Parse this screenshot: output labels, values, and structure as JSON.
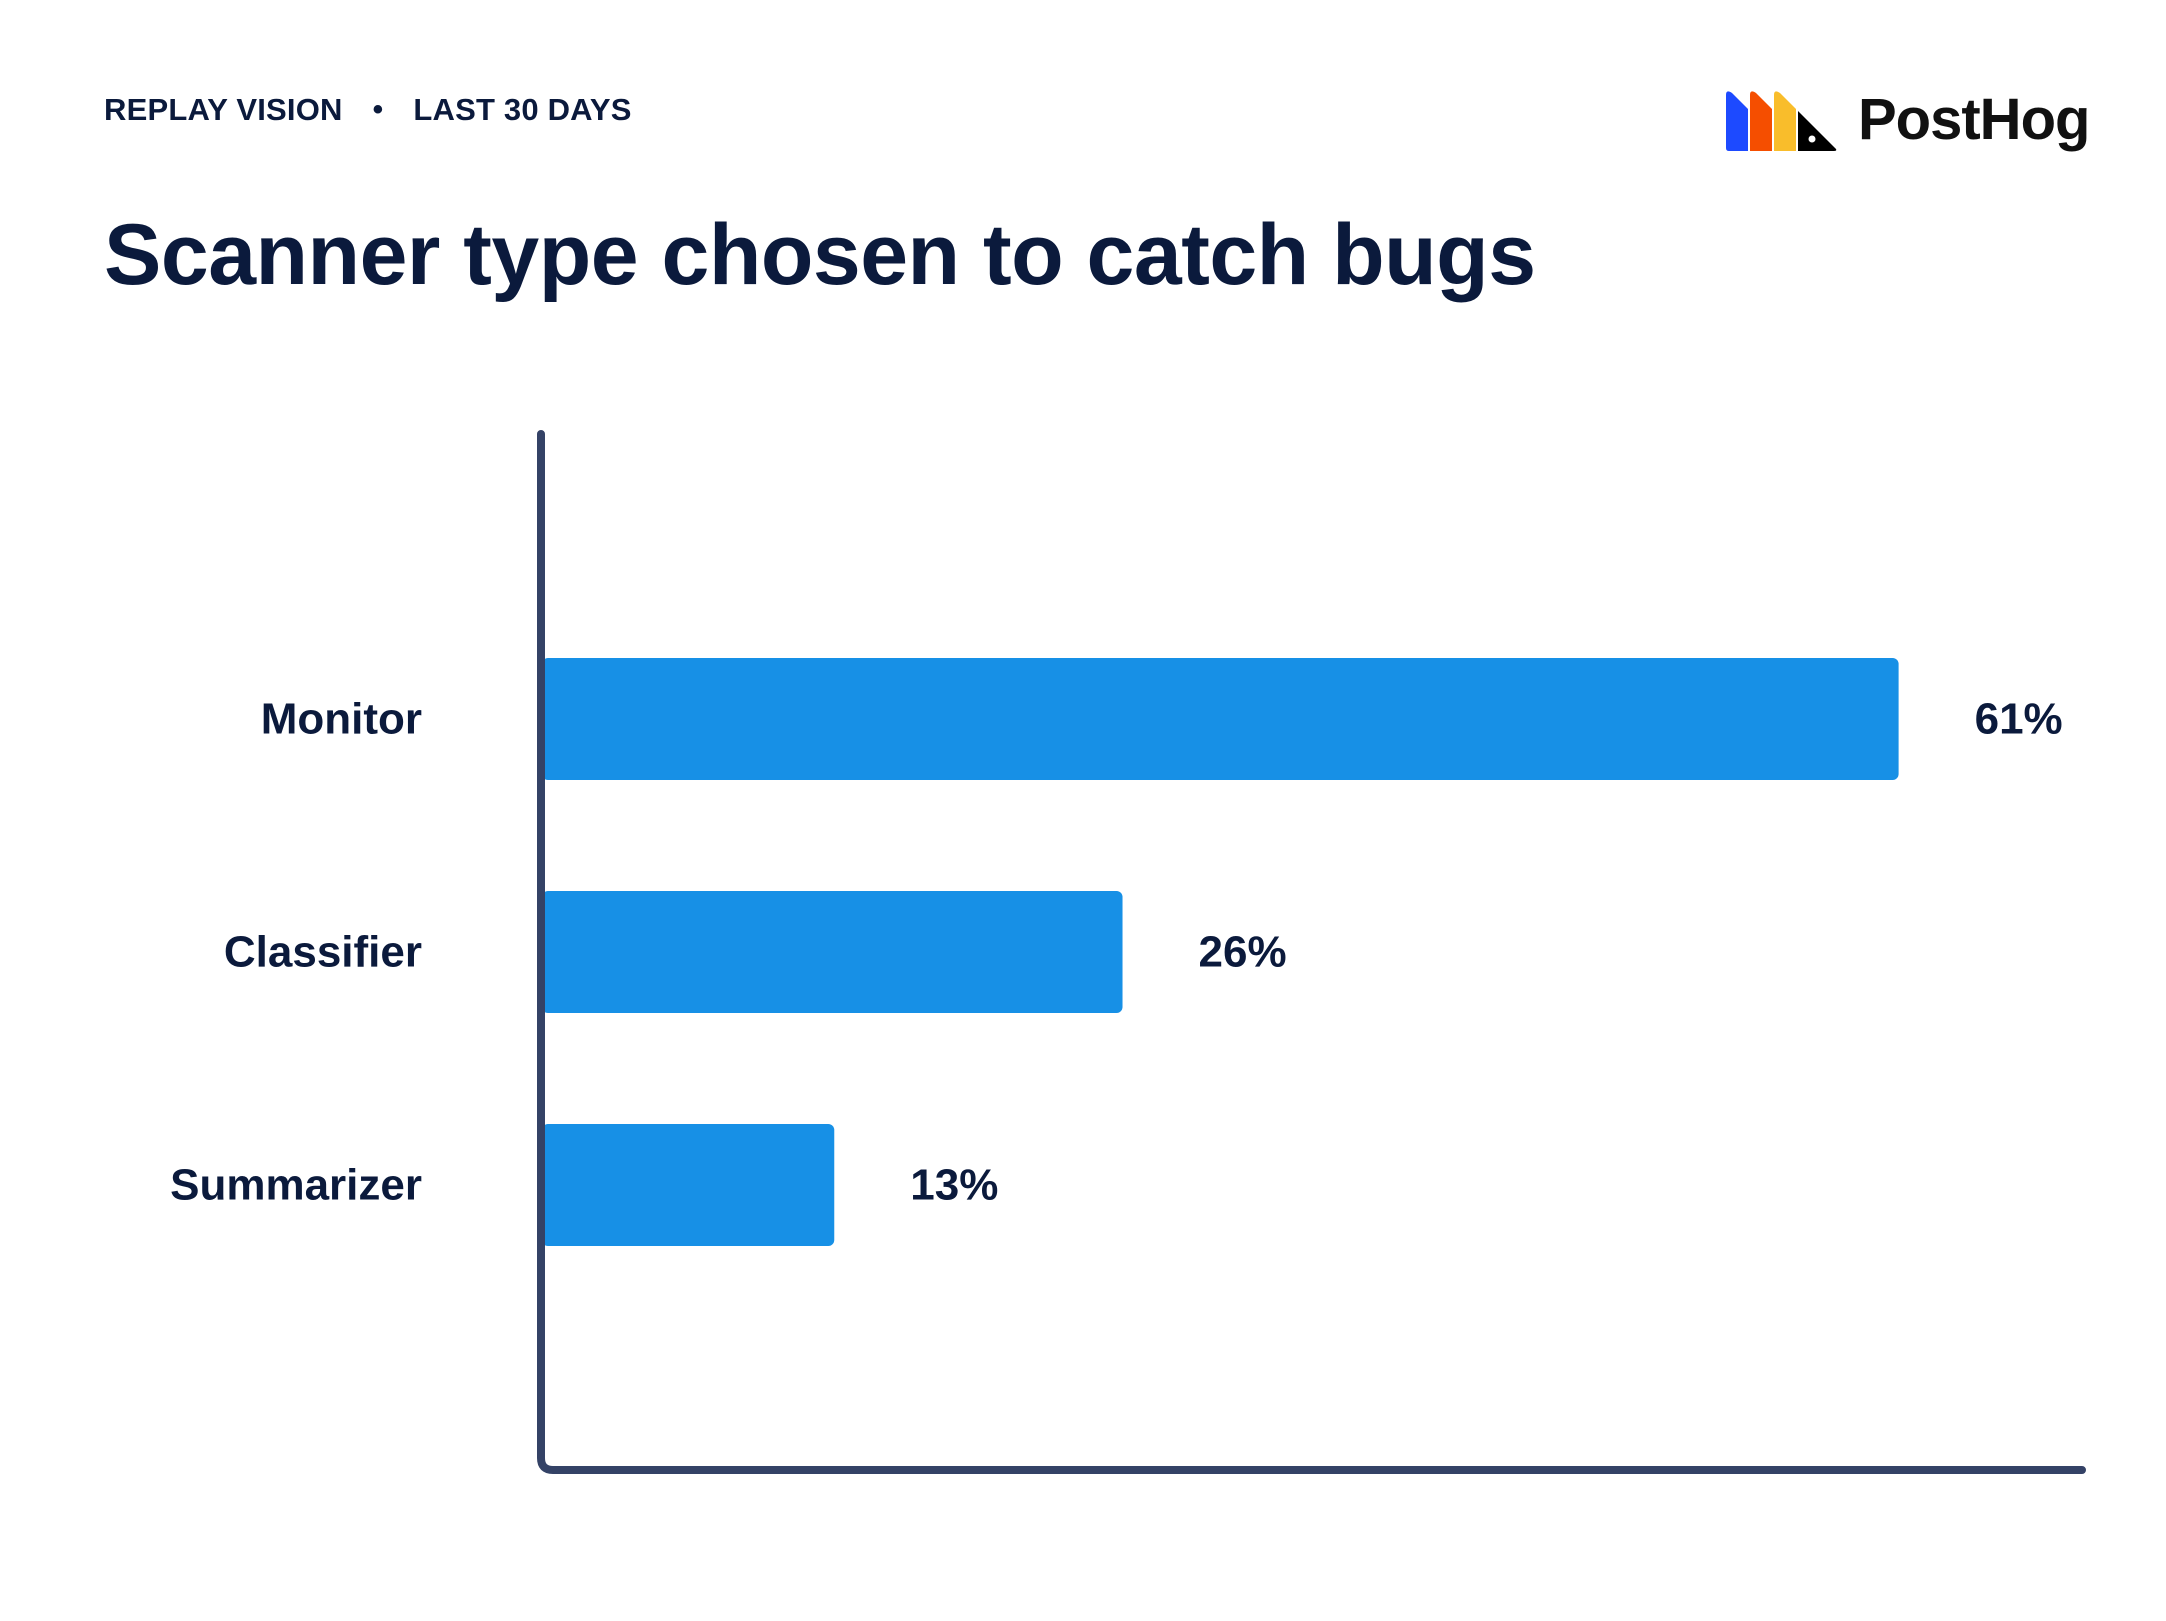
{
  "header": {
    "kicker_left": "REPLAY VISION",
    "kicker_separator": "•",
    "kicker_right": "LAST 30 DAYS",
    "brand_name": "PostHog",
    "brand_colors": [
      "#1d4aff",
      "#f54e00",
      "#f9bd2b",
      "#000000"
    ]
  },
  "chart_data": {
    "type": "bar",
    "orientation": "horizontal",
    "title": "Scanner type chosen to catch bugs",
    "categories": [
      "Monitor",
      "Classifier",
      "Summarizer"
    ],
    "values": [
      61,
      26,
      13
    ],
    "value_labels": [
      "61%",
      "26%",
      "13%"
    ],
    "unit": "%",
    "xlim": [
      0,
      69
    ],
    "bar_color": "#1790e6",
    "axis_color": "#344266",
    "grid": false,
    "legend": "none"
  }
}
